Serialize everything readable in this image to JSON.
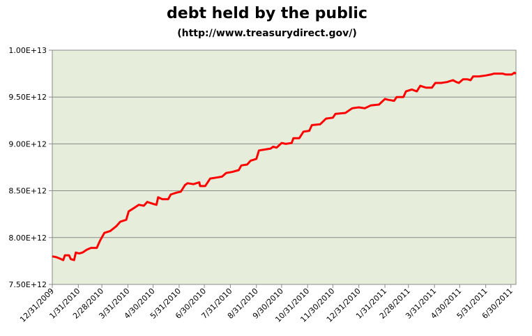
{
  "chart_data": {
    "type": "line",
    "title": "debt held by the public",
    "subtitle": "(http://www.treasurydirect.gov/)",
    "x": [
      "12/31/2009",
      "1/5/2010",
      "1/8/2010",
      "1/13/2010",
      "1/15/2010",
      "1/20/2010",
      "1/22/2010",
      "1/26/2010",
      "1/28/2010",
      "2/1/2010",
      "2/5/2010",
      "2/10/2010",
      "2/15/2010",
      "2/22/2010",
      "2/26/2010",
      "3/3/2010",
      "3/10/2010",
      "3/17/2010",
      "3/22/2010",
      "3/29/2010",
      "4/1/2010",
      "4/8/2010",
      "4/13/2010",
      "4/19/2010",
      "4/23/2010",
      "4/30/2010",
      "5/4/2010",
      "5/6/2010",
      "5/11/2010",
      "5/18/2010",
      "5/21/2010",
      "5/28/2010",
      "6/2/2010",
      "6/7/2010",
      "6/10/2010",
      "6/17/2010",
      "6/24/2010",
      "6/25/2010",
      "7/1/2010",
      "7/7/2010",
      "7/14/2010",
      "7/21/2010",
      "7/26/2010",
      "8/2/2010",
      "8/10/2010",
      "8/13/2010",
      "8/20/2010",
      "8/24/2010",
      "8/31/2010",
      "9/3/2010",
      "9/10/2010",
      "9/17/2010",
      "9/20/2010",
      "9/24/2010",
      "9/30/2010",
      "10/5/2010",
      "10/12/2010",
      "10/14/2010",
      "10/21/2010",
      "10/26/2010",
      "11/2/2010",
      "11/5/2010",
      "11/15/2010",
      "11/22/2010",
      "11/30/2010",
      "12/3/2010",
      "12/15/2010",
      "12/23/2010",
      "12/31/2010",
      "1/7/2011",
      "1/14/2011",
      "1/24/2011",
      "1/31/2011",
      "2/4/2011",
      "2/11/2011",
      "2/14/2011",
      "2/22/2011",
      "2/25/2011",
      "3/4/2011",
      "3/10/2011",
      "3/14/2011",
      "3/21/2011",
      "3/28/2011",
      "4/1/2011",
      "4/8/2011",
      "4/15/2011",
      "4/22/2011",
      "4/26/2011",
      "4/29/2011",
      "5/4/2011",
      "5/9/2011",
      "5/13/2011",
      "5/16/2011",
      "5/23/2011",
      "5/31/2011",
      "6/6/2011",
      "6/10/2011",
      "6/20/2011",
      "6/24/2011",
      "7/1/2011",
      "7/4/2011",
      "7/6/2011"
    ],
    "series": [
      {
        "name": "debt held by the public",
        "color": "#ff0000",
        "values": [
          7800000000000.0,
          7790000000000.0,
          7780000000000.0,
          7760000000000.0,
          7810000000000.0,
          7810000000000.0,
          7770000000000.0,
          7760000000000.0,
          7840000000000.0,
          7830000000000.0,
          7840000000000.0,
          7870000000000.0,
          7890000000000.0,
          7890000000000.0,
          7970000000000.0,
          8050000000000.0,
          8070000000000.0,
          8120000000000.0,
          8170000000000.0,
          8190000000000.0,
          8280000000000.0,
          8320000000000.0,
          8350000000000.0,
          8340000000000.0,
          8380000000000.0,
          8360000000000.0,
          8350000000000.0,
          8430000000000.0,
          8410000000000.0,
          8410000000000.0,
          8460000000000.0,
          8480000000000.0,
          8490000000000.0,
          8560000000000.0,
          8580000000000.0,
          8570000000000.0,
          8590000000000.0,
          8550000000000.0,
          8550000000000.0,
          8630000000000.0,
          8640000000000.0,
          8650000000000.0,
          8690000000000.0,
          8700000000000.0,
          8720000000000.0,
          8770000000000.0,
          8780000000000.0,
          8820000000000.0,
          8840000000000.0,
          8930000000000.0,
          8940000000000.0,
          8950000000000.0,
          8970000000000.0,
          8960000000000.0,
          9010000000000.0,
          9000000000000.0,
          9010000000000.0,
          9060000000000.0,
          9060000000000.0,
          9130000000000.0,
          9140000000000.0,
          9200000000000.0,
          9210000000000.0,
          9270000000000.0,
          9280000000000.0,
          9320000000000.0,
          9330000000000.0,
          9380000000000.0,
          9390000000000.0,
          9380000000000.0,
          9410000000000.0,
          9420000000000.0,
          9480000000000.0,
          9470000000000.0,
          9460000000000.0,
          9500000000000.0,
          9500000000000.0,
          9560000000000.0,
          9580000000000.0,
          9560000000000.0,
          9620000000000.0,
          9600000000000.0,
          9600000000000.0,
          9650000000000.0,
          9650000000000.0,
          9660000000000.0,
          9680000000000.0,
          9660000000000.0,
          9650000000000.0,
          9690000000000.0,
          9690000000000.0,
          9680000000000.0,
          9720000000000.0,
          9720000000000.0,
          9730000000000.0,
          9740000000000.0,
          9750000000000.0,
          9750000000000.0,
          9740000000000.0,
          9740000000000.0,
          9760000000000.0,
          9750000000000.0
        ]
      }
    ],
    "xlim": [
      "12/31/2009",
      "7/6/2011"
    ],
    "xticks": [
      "12/31/2009",
      "1/31/2010",
      "2/28/2010",
      "3/31/2010",
      "4/30/2010",
      "5/31/2010",
      "6/30/2010",
      "7/31/2010",
      "8/31/2010",
      "9/30/2010",
      "10/31/2010",
      "11/30/2010",
      "12/31/2010",
      "1/31/2011",
      "2/28/2011",
      "3/31/2011",
      "4/30/2011",
      "5/31/2011",
      "6/30/2011"
    ],
    "ylim": [
      7500000000000.0,
      10000000000000.0
    ],
    "yticks": [
      {
        "value": 7500000000000.0,
        "label": "7.50E+12"
      },
      {
        "value": 8000000000000.0,
        "label": "8.00E+12"
      },
      {
        "value": 8500000000000.0,
        "label": "8.50E+12"
      },
      {
        "value": 9000000000000.0,
        "label": "9.00E+12"
      },
      {
        "value": 9500000000000.0,
        "label": "9.50E+12"
      },
      {
        "value": 10000000000000.0,
        "label": "1.00E+13"
      }
    ],
    "grid": true,
    "plot_background": "#e6eedb"
  }
}
